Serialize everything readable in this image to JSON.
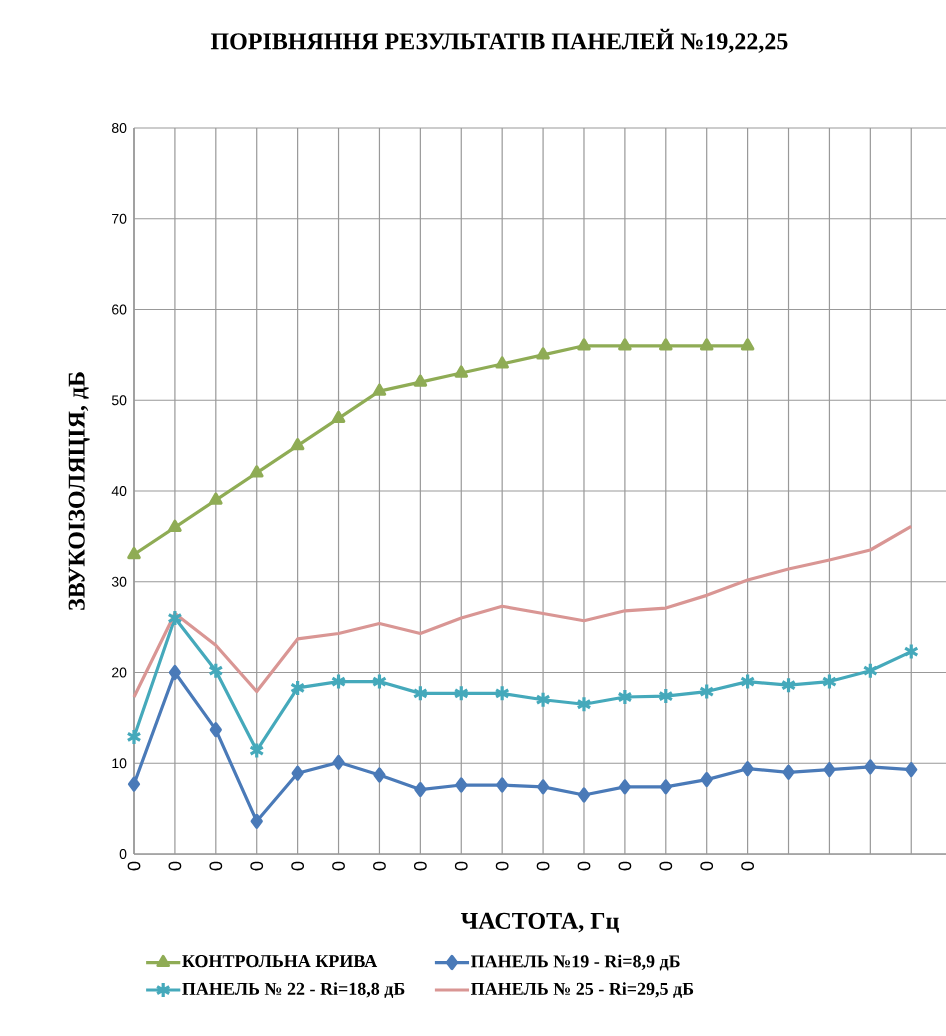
{
  "chart_data": {
    "type": "line",
    "title": "ПОРІВНЯННЯ РЕЗУЛЬТАТІВ ПАНЕЛЕЙ №19,22,25",
    "xlabel": "ЧАСТОТА, Гц",
    "ylabel": "ЗВУКОІЗОЛЯЦІЯ, дБ",
    "categories": [
      "0",
      "0",
      "0",
      "0",
      "0",
      "0",
      "0",
      "0",
      "0",
      "0",
      "0",
      "0",
      "0",
      "0",
      "0",
      "0",
      null,
      null,
      null,
      null
    ],
    "series": [
      {
        "name": "КОНТРОЛЬНА КРИВА",
        "color": "#8fac55",
        "marker": "triangle",
        "values": [
          33,
          36,
          39,
          42,
          45,
          48,
          51,
          52,
          53,
          54,
          55,
          56,
          56,
          56,
          56,
          56,
          null,
          null,
          null,
          null
        ]
      },
      {
        "name": "ПАНЕЛЬ №19 -  Ri=8,9  дБ",
        "color": "#4a7ab8",
        "marker": "diamond",
        "values": [
          7.7,
          20,
          13.7,
          3.6,
          8.9,
          10.1,
          8.7,
          7.1,
          7.6,
          7.6,
          7.4,
          6.5,
          7.4,
          7.4,
          8.2,
          9.4,
          9.0,
          9.3,
          9.6,
          9.3
        ]
      },
      {
        "name": "ПАНЕЛЬ № 22 -  Ri=18,8  дБ",
        "color": "#45a9bb",
        "marker": "cross",
        "values": [
          12.9,
          26,
          20.2,
          11.4,
          18.3,
          19,
          19,
          17.7,
          17.7,
          17.7,
          17,
          16.5,
          17.3,
          17.4,
          17.9,
          19,
          18.6,
          19,
          20.2,
          22.3
        ]
      },
      {
        "name": "ПАНЕЛЬ № 25 - Ri=29,5  дБ",
        "color": "#d99694",
        "marker": "none",
        "values": [
          17.3,
          26.5,
          23,
          17.9,
          23.7,
          24.3,
          25.4,
          24.3,
          26,
          27.3,
          26.5,
          25.7,
          26.8,
          27.1,
          28.5,
          30.2,
          31.4,
          32.4,
          33.5,
          36.1
        ]
      }
    ],
    "ylim": [
      0,
      80
    ],
    "yticks": [
      0,
      10,
      20,
      30,
      40,
      50,
      60,
      70,
      80
    ],
    "grid": true,
    "legend": "bottom"
  }
}
